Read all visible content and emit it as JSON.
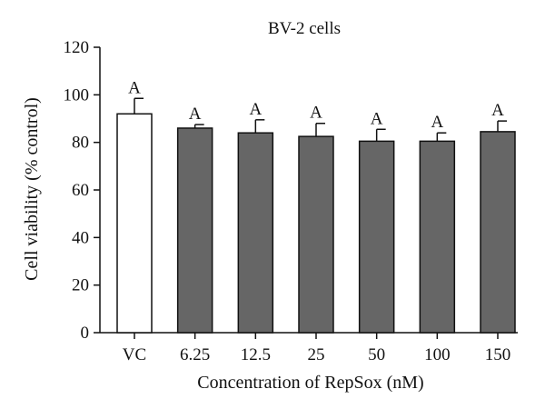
{
  "chart_data": {
    "type": "bar",
    "title": "BV-2 cells",
    "xlabel": "Concentration of RepSox (nM)",
    "ylabel": "Cell viability (% control)",
    "categories": [
      "VC",
      "6.25",
      "12.5",
      "25",
      "50",
      "100",
      "150"
    ],
    "values": [
      92,
      86,
      84,
      82.5,
      80.5,
      80.5,
      84.5
    ],
    "errors": [
      6.5,
      1.5,
      5.5,
      5.5,
      5,
      3.5,
      4.5
    ],
    "significance_labels": [
      "A",
      "A",
      "A",
      "A",
      "A",
      "A",
      "A"
    ],
    "ylim": [
      0,
      120
    ],
    "yticks": [
      0,
      20,
      40,
      60,
      80,
      100,
      120
    ],
    "grid": false,
    "colors": {
      "control_bar": "#ffffff",
      "treatment_bar": "#666666",
      "outline": "#111111"
    }
  }
}
